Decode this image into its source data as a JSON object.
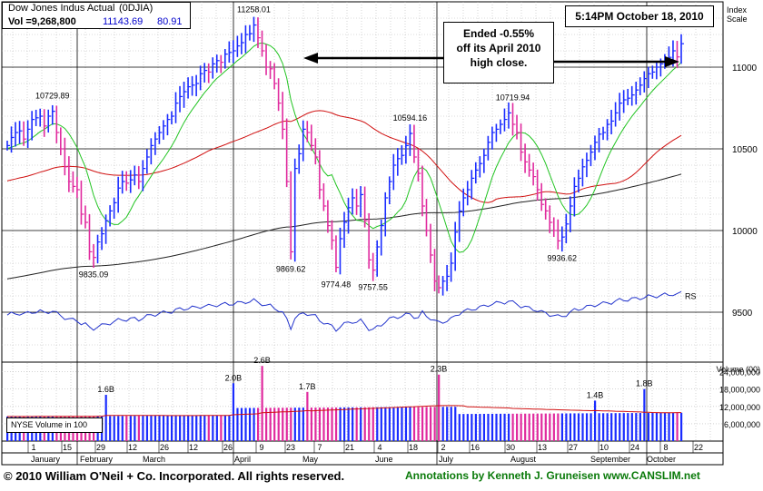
{
  "header": {
    "name": "Dow Jones Indus Actual",
    "symbol": "(0DJIA)",
    "volume": "Vol =9,268,800",
    "price": "11143.69",
    "change": "80.91"
  },
  "timestamp": "5:14PM October 18, 2010",
  "annotation": {
    "line1": "Ended -0.55%",
    "line2": "off its April 2010",
    "line3": "high close."
  },
  "scale_label": {
    "line1": "Index",
    "line2": "Scale"
  },
  "volume_legend": "NYSE Volume in 100",
  "footer": {
    "copyright": "© 2010 William O'Neil + Co. Incorporated. All rights reserved.",
    "annotations": "Annotations by Kenneth J. Gruneisen www.CANSLIM.net"
  },
  "colors": {
    "up_bar": "#1a2cff",
    "down_bar": "#e02a9e",
    "ma_short": "#22c422",
    "ma_50": "#d01010",
    "ma_200": "#222222",
    "rs_line": "#2233cc",
    "volume_avg": "#d01010",
    "footer_annotation": "#0a7a0a"
  },
  "chart_data": {
    "type": "line",
    "subtype": "ohlc-daily",
    "price_axis": {
      "ticks": [
        9500,
        10000,
        10500,
        11000
      ],
      "ylim": [
        9200,
        11400
      ],
      "side": "right"
    },
    "volume_axis": {
      "title": "Volume (00)",
      "ticks": [
        "24,000,000",
        "18,000,000",
        "12,000,000",
        "6,000,000"
      ],
      "tick_values": [
        24000000,
        18000000,
        12000000,
        6000000
      ],
      "ylim": [
        0,
        27000000
      ]
    },
    "x_day_labels": [
      "1",
      "15",
      "29",
      "12",
      "26",
      "12",
      "26",
      "9",
      "23",
      "7",
      "21",
      "4",
      "18",
      "2",
      "16",
      "30",
      "13",
      "27",
      "10",
      "24",
      "8",
      "22"
    ],
    "month_labels": [
      "January",
      "February",
      "March",
      "April",
      "May",
      "June",
      "July",
      "August",
      "September",
      "October"
    ],
    "close": [
      10520,
      10570,
      10600,
      10610,
      10560,
      10620,
      10680,
      10690,
      10700,
      10640,
      10700,
      10729.89,
      10600,
      10500,
      10390,
      10300,
      10270,
      10250,
      10100,
      10050,
      9870,
      9835.09,
      9930,
      9980,
      10060,
      10120,
      10170,
      10260,
      10300,
      10290,
      10310,
      10340,
      10300,
      10380,
      10450,
      10520,
      10560,
      10600,
      10640,
      10680,
      10700,
      10780,
      10820,
      10850,
      10880,
      10890,
      10900,
      10960,
      10980,
      10970,
      11020,
      11040,
      11030,
      11080,
      11090,
      11100,
      11130,
      11150,
      11200,
      11205,
      11258.01,
      11180,
      11100,
      11000,
      10990,
      10900,
      10780,
      10620,
      10300,
      9869.62,
      10380,
      10470,
      10620,
      10600,
      10520,
      10450,
      10250,
      10150,
      10030,
      9940,
      9774.48,
      9950,
      10050,
      10140,
      10200,
      10150,
      10220,
      10060,
      9820,
      9757.55,
      9900,
      10030,
      10200,
      10300,
      10400,
      10440,
      10460,
      10520,
      10594.16,
      10450,
      10350,
      10150,
      10000,
      9850,
      9690,
      9650,
      9690,
      9720,
      9800,
      9990,
      10120,
      10200,
      10250,
      10320,
      10370,
      10410,
      10460,
      10540,
      10600,
      10620,
      10650,
      10680,
      10719.94,
      10650,
      10600,
      10480,
      10420,
      10370,
      10330,
      10250,
      10160,
      10120,
      10050,
      10000,
      9936.62,
      9960,
      10040,
      10150,
      10270,
      10320,
      10390,
      10430,
      10480,
      10540,
      10590,
      10600,
      10650,
      10670,
      10720,
      10780,
      10800,
      10810,
      10830,
      10860,
      10890,
      10930,
      10960,
      10970,
      11000,
      11020,
      11050,
      11060,
      11100,
      11062.78,
      11143.69
    ],
    "swing_labels": [
      {
        "index": 11,
        "value": 10729.89,
        "label": "10729.89",
        "pos": "above"
      },
      {
        "index": 21,
        "value": 9835.09,
        "label": "9835.09",
        "pos": "below"
      },
      {
        "index": 60,
        "value": 11258.01,
        "label": "11258.01",
        "pos": "above"
      },
      {
        "index": 69,
        "value": 9869.62,
        "label": "9869.62",
        "pos": "below"
      },
      {
        "index": 80,
        "value": 9774.48,
        "label": "9774.48",
        "pos": "below"
      },
      {
        "index": 89,
        "value": 9757.55,
        "label": "9757.55",
        "pos": "below"
      },
      {
        "index": 98,
        "value": 10594.16,
        "label": "10594.16",
        "pos": "above"
      },
      {
        "index": 123,
        "value": 10719.94,
        "label": "10719.94",
        "pos": "above"
      },
      {
        "index": 135,
        "value": 9936.62,
        "label": "9936.62",
        "pos": "below"
      }
    ],
    "rs_label": "RS",
    "volume_labels": [
      {
        "index": 24,
        "label": "1.6B",
        "value": 16000000
      },
      {
        "index": 55,
        "label": "2.0B",
        "value": 20000000
      },
      {
        "index": 73,
        "label": "1.7B",
        "value": 17000000
      },
      {
        "index": 62,
        "label": "2.6B",
        "value": 26000000
      },
      {
        "index": 105,
        "label": "2.3B",
        "value": 23000000
      },
      {
        "index": 143,
        "label": "1.4B",
        "value": 14000000
      },
      {
        "index": 155,
        "label": "1.8B",
        "value": 18000000
      }
    ],
    "grid": true
  }
}
